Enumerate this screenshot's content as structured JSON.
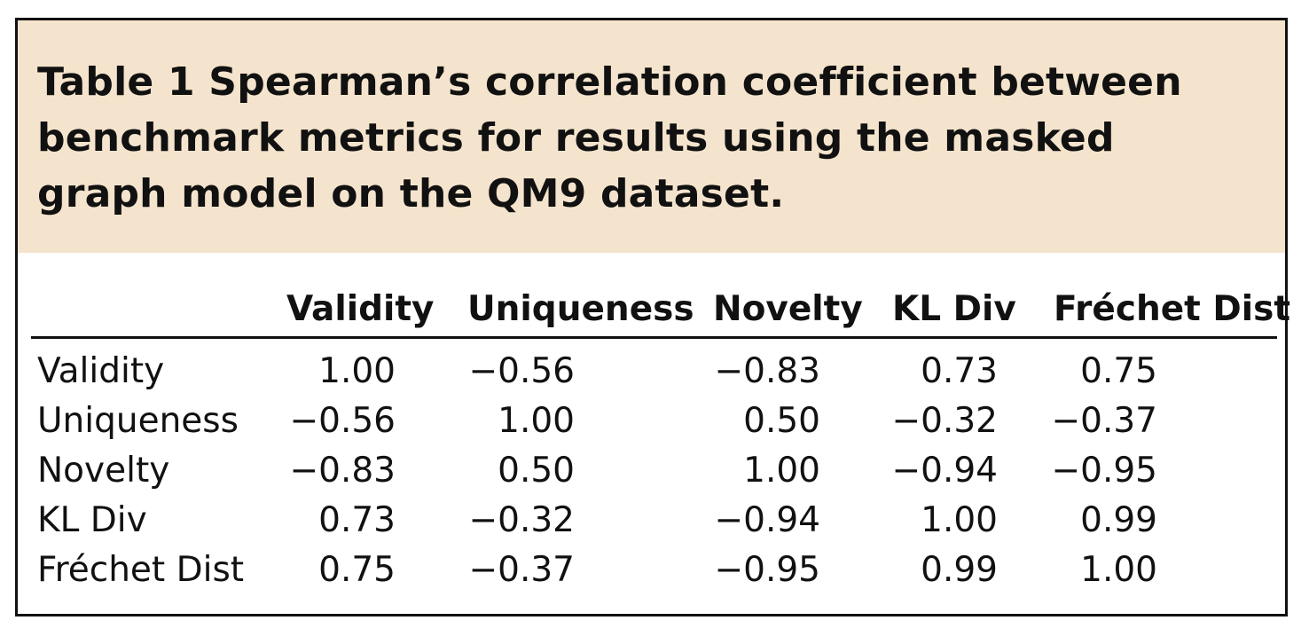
{
  "caption": "Table 1 Spearman’s correlation coefficient between benchmark metrics for results using the masked graph model on the QM9 dataset.",
  "table": {
    "columns": [
      "Validity",
      "Uniqueness",
      "Novelty",
      "KL Div",
      "Fréchet Dist"
    ],
    "rows": [
      {
        "label": "Validity",
        "values": [
          "1.00",
          "−0.56",
          "−0.83",
          "0.73",
          "0.75"
        ]
      },
      {
        "label": "Uniqueness",
        "values": [
          "−0.56",
          "1.00",
          "0.50",
          "−0.32",
          "−0.37"
        ]
      },
      {
        "label": "Novelty",
        "values": [
          "−0.83",
          "0.50",
          "1.00",
          "−0.94",
          "−0.95"
        ]
      },
      {
        "label": "KL Div",
        "values": [
          "0.73",
          "−0.32",
          "−0.94",
          "1.00",
          "0.99"
        ]
      },
      {
        "label": "Fréchet Dist",
        "values": [
          "0.75",
          "−0.37",
          "−0.95",
          "0.99",
          "1.00"
        ]
      }
    ]
  },
  "colors": {
    "caption_background": "#f5e4cd",
    "border": "#111111"
  }
}
